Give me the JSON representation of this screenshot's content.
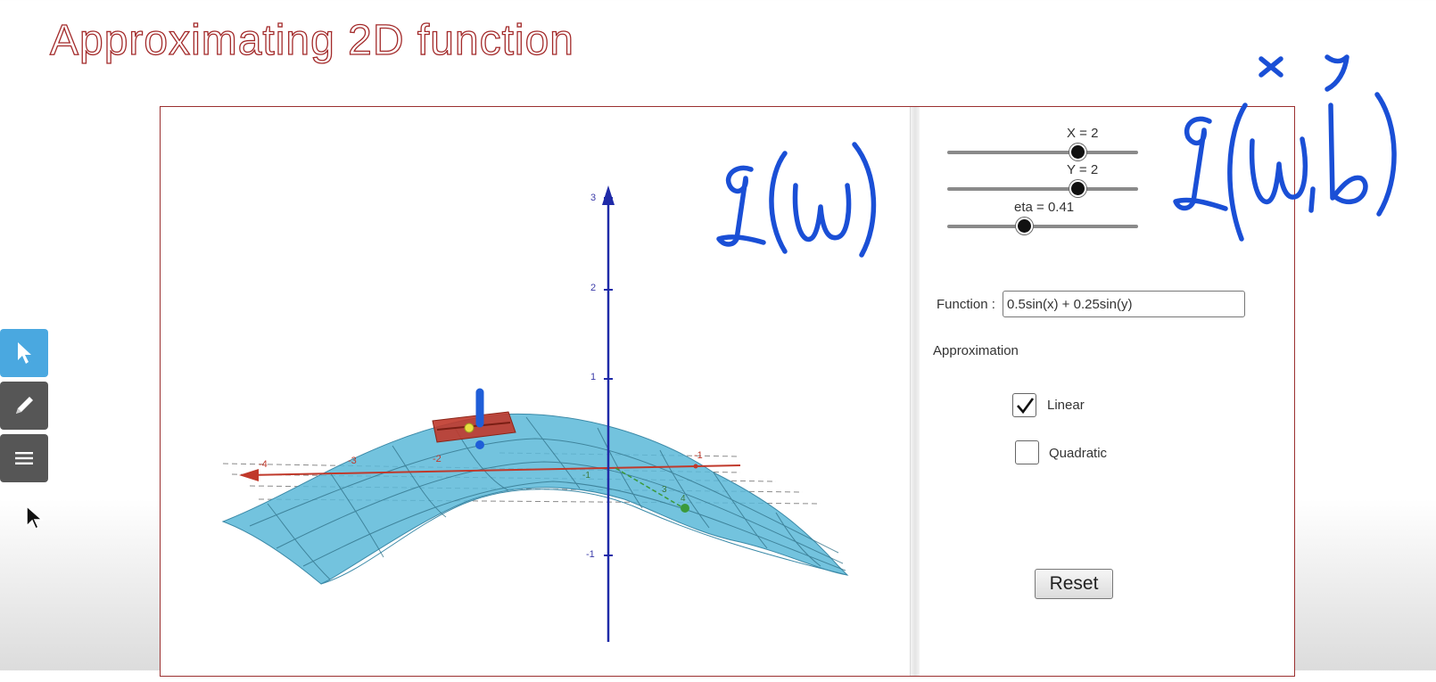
{
  "page": {
    "title": "Approximating 2D function"
  },
  "toolbar": {
    "tools": [
      "move-tool",
      "pen-tool",
      "menu-tool"
    ],
    "active": "move-tool",
    "active_color": "#4aa8e0"
  },
  "sliders": [
    {
      "label": "X = 2",
      "value": 2
    },
    {
      "label": "Y = 2",
      "value": 2
    },
    {
      "label": "eta = 0.41",
      "value": 0.41
    }
  ],
  "function": {
    "label": "Function :",
    "value": "0.5sin(x) + 0.25sin(y)"
  },
  "approximation": {
    "label": "Approximation",
    "options": [
      {
        "label": "Linear",
        "checked": true
      },
      {
        "label": "Quadratic",
        "checked": false
      }
    ]
  },
  "reset_label": "Reset",
  "axes": {
    "z_ticks": [
      "3",
      "2",
      "1",
      "-1"
    ],
    "x_ticks": [
      "-4",
      "-3",
      "-2",
      "-1"
    ],
    "y_ticks": [
      "-1",
      "3",
      "4"
    ]
  },
  "annotations": {
    "left_formula": "L(w)",
    "right_formula": "L(w, b)",
    "right_superscripts": [
      "x",
      "y"
    ],
    "ink_color": "#1a4fd6"
  },
  "colors": {
    "surface": "#5bb8d8",
    "tangent_plane": "#c0392b",
    "z_axis": "#1f2aa8",
    "x_axis": "#c0392b",
    "border": "#9b3030"
  }
}
